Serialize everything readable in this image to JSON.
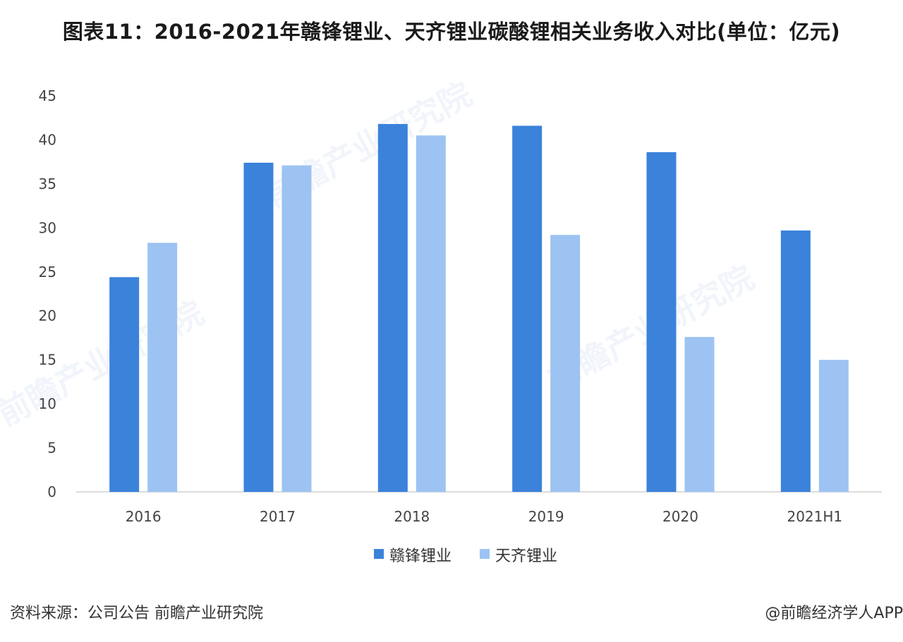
{
  "title": "图表11：2016-2021年赣锋锂业、天齐锂业碳酸锂相关业务收入对比(单位：亿元)",
  "footer": {
    "source": "资料来源：公司公告 前瞻产业研究院",
    "brand": "@前瞻经济学人APP"
  },
  "watermark": "前瞻产业研究院",
  "colors": {
    "series1": "#3b82db",
    "series2": "#9dc3f2"
  },
  "chart_data": {
    "type": "bar",
    "title": "图表11：2016-2021年赣锋锂业、天齐锂业碳酸锂相关业务收入对比(单位：亿元)",
    "categories": [
      "2016",
      "2017",
      "2018",
      "2019",
      "2020",
      "2021H1"
    ],
    "series": [
      {
        "name": "赣锋锂业",
        "values": [
          24.4,
          37.4,
          41.8,
          41.6,
          38.6,
          29.7
        ]
      },
      {
        "name": "天齐锂业",
        "values": [
          28.3,
          37.1,
          40.5,
          29.2,
          17.6,
          15.0
        ]
      }
    ],
    "yticks": [
      0,
      5,
      10,
      15,
      20,
      25,
      30,
      35,
      40,
      45
    ],
    "ylim": [
      0,
      45
    ],
    "grid": false,
    "legend_position": "bottom-center",
    "xlabel": "",
    "ylabel": ""
  }
}
